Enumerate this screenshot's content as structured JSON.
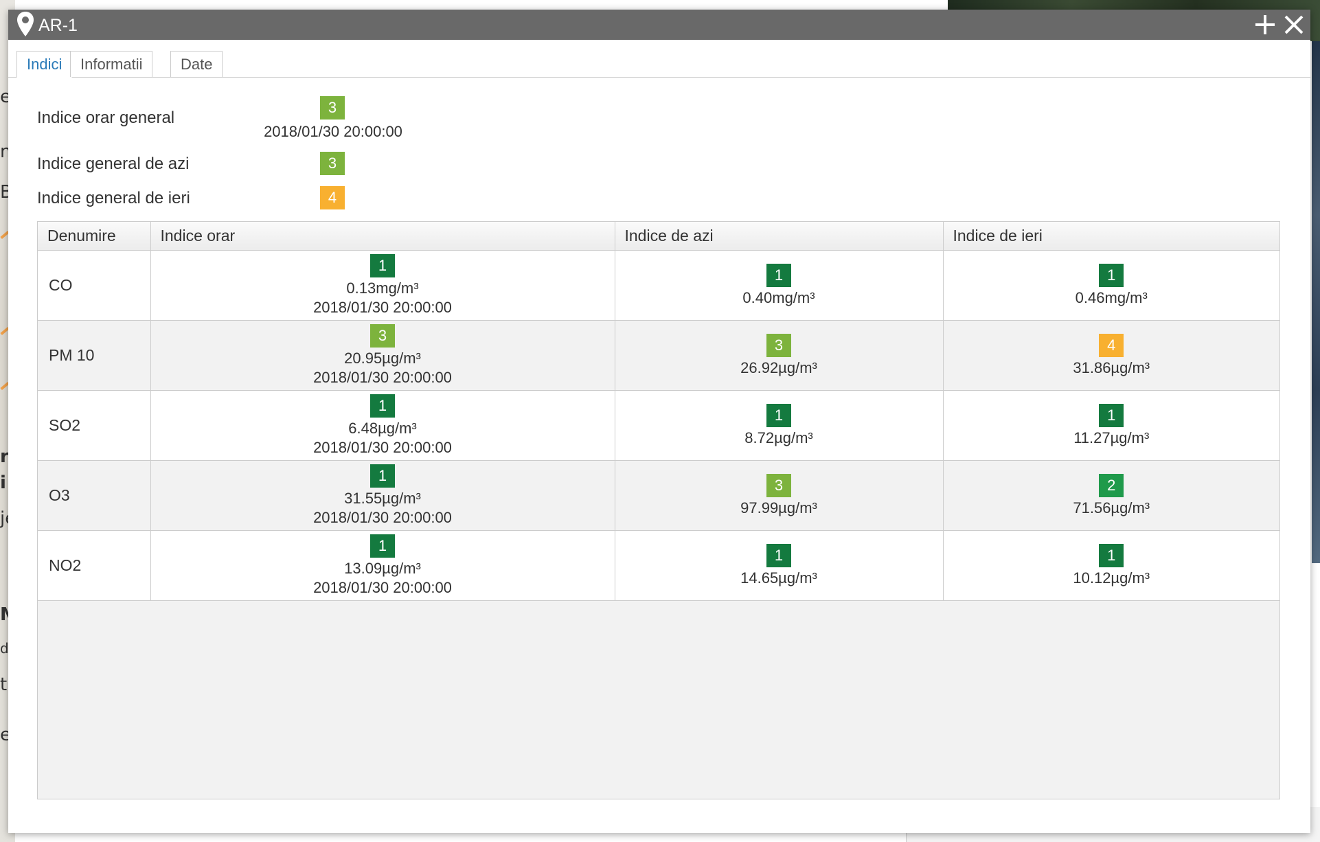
{
  "colors": {
    "index_1": "#147a3f",
    "index_2": "#1f9a4b",
    "index_3": "#7db33d",
    "index_4": "#f8b030",
    "titlebar": "#696969",
    "tab_active": "#2a7ab8"
  },
  "background_fragments": [
    "e",
    "n",
    "B",
    "r",
    "i",
    "je",
    "M",
    "dg",
    "t",
    "er"
  ],
  "window": {
    "title": "AR-1",
    "icons": {
      "pin": "map-pin-icon",
      "plus": "plus-icon",
      "close": "close-icon"
    }
  },
  "tabs": [
    {
      "label": "Indici",
      "active": true
    },
    {
      "label": "Informatii",
      "active": false
    },
    {
      "label": "Date",
      "active": false
    }
  ],
  "summary": {
    "hourly": {
      "label": "Indice orar general",
      "value": "3",
      "timestamp": "2018/01/30 20:00:00"
    },
    "today": {
      "label": "Indice general de azi",
      "value": "3"
    },
    "yesterday": {
      "label": "Indice general de ieri",
      "value": "4"
    }
  },
  "table": {
    "headers": [
      "Denumire",
      "Indice orar",
      "Indice de azi",
      "Indice de ieri"
    ],
    "rows": [
      {
        "name": "CO",
        "hourly": {
          "index": "1",
          "value": "0.13mg/m³",
          "time": "2018/01/30 20:00:00"
        },
        "today": {
          "index": "1",
          "value": "0.40mg/m³"
        },
        "yesterday": {
          "index": "1",
          "value": "0.46mg/m³"
        }
      },
      {
        "name": "PM 10",
        "hourly": {
          "index": "3",
          "value": "20.95µg/m³",
          "time": "2018/01/30 20:00:00"
        },
        "today": {
          "index": "3",
          "value": "26.92µg/m³"
        },
        "yesterday": {
          "index": "4",
          "value": "31.86µg/m³"
        }
      },
      {
        "name": "SO2",
        "hourly": {
          "index": "1",
          "value": "6.48µg/m³",
          "time": "2018/01/30 20:00:00"
        },
        "today": {
          "index": "1",
          "value": "8.72µg/m³"
        },
        "yesterday": {
          "index": "1",
          "value": "11.27µg/m³"
        }
      },
      {
        "name": "O3",
        "hourly": {
          "index": "1",
          "value": "31.55µg/m³",
          "time": "2018/01/30 20:00:00"
        },
        "today": {
          "index": "3",
          "value": "97.99µg/m³"
        },
        "yesterday": {
          "index": "2",
          "value": "71.56µg/m³"
        }
      },
      {
        "name": "NO2",
        "hourly": {
          "index": "1",
          "value": "13.09µg/m³",
          "time": "2018/01/30 20:00:00"
        },
        "today": {
          "index": "1",
          "value": "14.65µg/m³"
        },
        "yesterday": {
          "index": "1",
          "value": "10.12µg/m³"
        }
      }
    ]
  }
}
